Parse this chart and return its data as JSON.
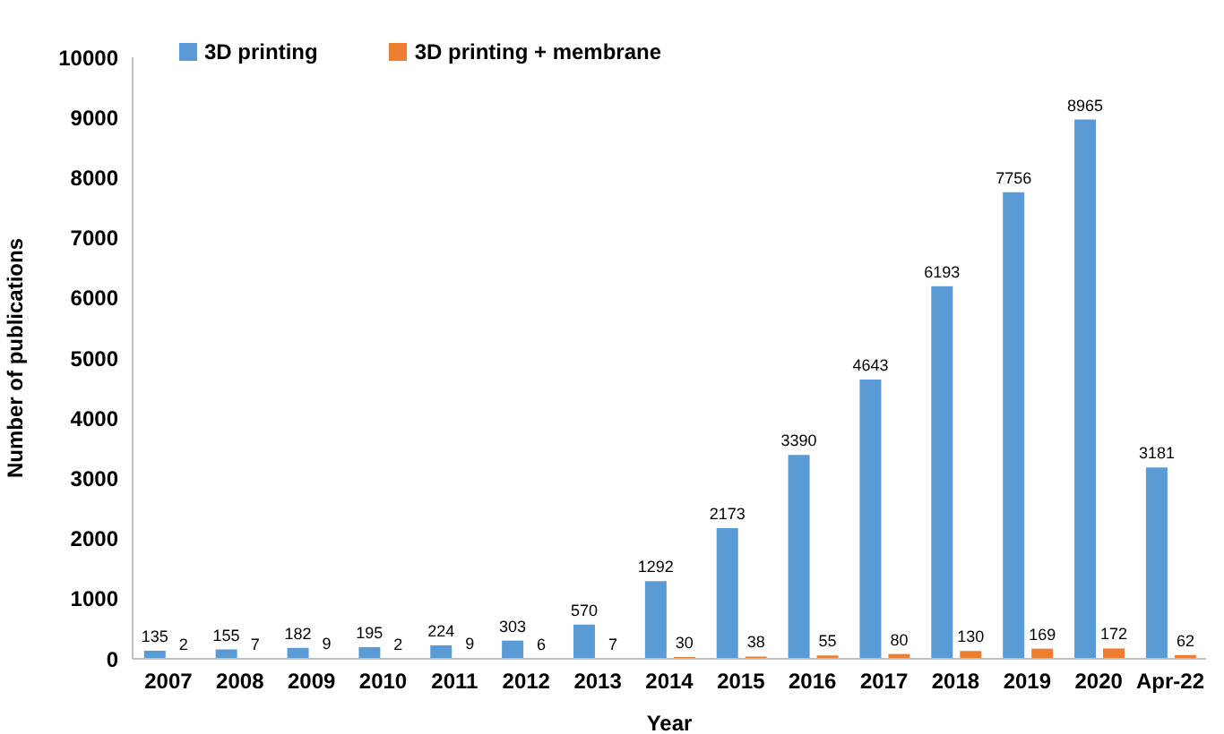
{
  "chart_data": {
    "type": "bar",
    "xlabel": "Year",
    "ylabel": "Number of publications",
    "categories": [
      "2007",
      "2008",
      "2009",
      "2010",
      "2011",
      "2012",
      "2013",
      "2014",
      "2015",
      "2016",
      "2017",
      "2018",
      "2019",
      "2020",
      "Apr-22"
    ],
    "series": [
      {
        "name": "3D printing",
        "color": "#5b9bd5",
        "values": [
          135,
          155,
          182,
          195,
          224,
          303,
          570,
          1292,
          2173,
          3390,
          4643,
          6193,
          7756,
          8965,
          3181
        ]
      },
      {
        "name": "3D printing + membrane",
        "color": "#ed7d31",
        "values": [
          2,
          7,
          9,
          2,
          9,
          6,
          7,
          30,
          38,
          55,
          80,
          130,
          169,
          172,
          62
        ]
      }
    ],
    "ylim": [
      0,
      10000
    ],
    "yticks": [
      0,
      1000,
      2000,
      3000,
      4000,
      5000,
      6000,
      7000,
      8000,
      9000,
      10000
    ],
    "grid": false,
    "legend": "top left",
    "data_labels": true
  }
}
